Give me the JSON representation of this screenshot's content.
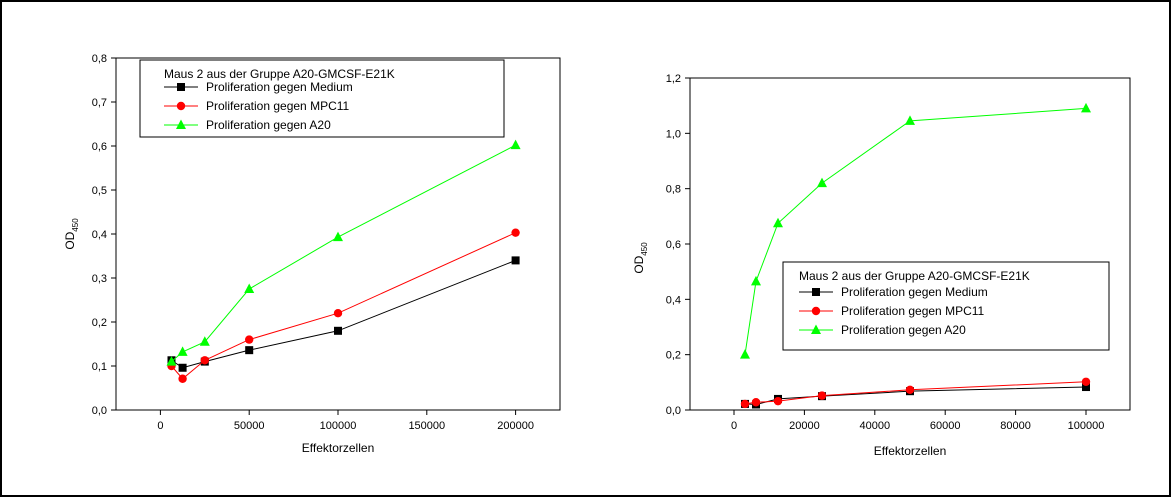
{
  "chart_data": [
    {
      "type": "line",
      "xlabel": "Effektorzellen",
      "ylabel": "OD",
      "ylabel_sub": "450",
      "xlim": [
        -25000,
        225000
      ],
      "ylim": [
        0,
        0.8
      ],
      "xticks": [
        0,
        50000,
        100000,
        150000,
        200000
      ],
      "yticks": [
        0,
        0.1,
        0.2,
        0.3,
        0.4,
        0.5,
        0.6,
        0.7,
        0.8
      ],
      "ytick_labels": [
        "0,0",
        "0,1",
        "0,2",
        "0,3",
        "0,4",
        "0,5",
        "0,6",
        "0,7",
        "0,8"
      ],
      "legend_title": "Maus 2 aus der Gruppe A20-GMCSF-E21K",
      "legend_position": "top-left",
      "series": [
        {
          "name": "Proliferation gegen Medium",
          "color": "#000000",
          "marker": "square",
          "x": [
            6250,
            12500,
            25000,
            50000,
            100000,
            200000
          ],
          "y": [
            0.113,
            0.096,
            0.11,
            0.136,
            0.18,
            0.34
          ]
        },
        {
          "name": "Proliferation gegen MPC11",
          "color": "#ff0000",
          "marker": "circle",
          "x": [
            6250,
            12500,
            25000,
            50000,
            100000,
            200000
          ],
          "y": [
            0.1,
            0.071,
            0.113,
            0.16,
            0.22,
            0.403
          ]
        },
        {
          "name": "Proliferation gegen A20",
          "color": "#00ff00",
          "marker": "triangle",
          "x": [
            6250,
            12500,
            25000,
            50000,
            100000,
            200000
          ],
          "y": [
            0.11,
            0.132,
            0.155,
            0.275,
            0.393,
            0.602
          ]
        }
      ]
    },
    {
      "type": "line",
      "xlabel": "Effektorzellen",
      "ylabel": "OD",
      "ylabel_sub": "450",
      "xlim": [
        -12500,
        112500
      ],
      "ylim": [
        0,
        1.2
      ],
      "xticks": [
        0,
        20000,
        40000,
        60000,
        80000,
        100000
      ],
      "yticks": [
        0,
        0.2,
        0.4,
        0.6,
        0.8,
        1.0,
        1.2
      ],
      "ytick_labels": [
        "0,0",
        "0,2",
        "0,4",
        "0,6",
        "0,8",
        "1,0",
        "1,2"
      ],
      "legend_title": "Maus 2 aus der Gruppe A20-GMCSF-E21K",
      "legend_position": "center-right",
      "series": [
        {
          "name": "Proliferation gegen Medium",
          "color": "#000000",
          "marker": "square",
          "x": [
            3125,
            6250,
            12500,
            25000,
            50000,
            100000
          ],
          "y": [
            0.022,
            0.02,
            0.04,
            0.05,
            0.068,
            0.083
          ]
        },
        {
          "name": "Proliferation gegen MPC11",
          "color": "#ff0000",
          "marker": "circle",
          "x": [
            3125,
            6250,
            12500,
            25000,
            50000,
            100000
          ],
          "y": [
            0.022,
            0.028,
            0.032,
            0.052,
            0.073,
            0.102
          ]
        },
        {
          "name": "Proliferation gegen A20",
          "color": "#00ff00",
          "marker": "triangle",
          "x": [
            3125,
            6250,
            12500,
            25000,
            50000,
            100000
          ],
          "y": [
            0.2,
            0.465,
            0.675,
            0.82,
            1.045,
            1.09
          ]
        }
      ]
    }
  ]
}
